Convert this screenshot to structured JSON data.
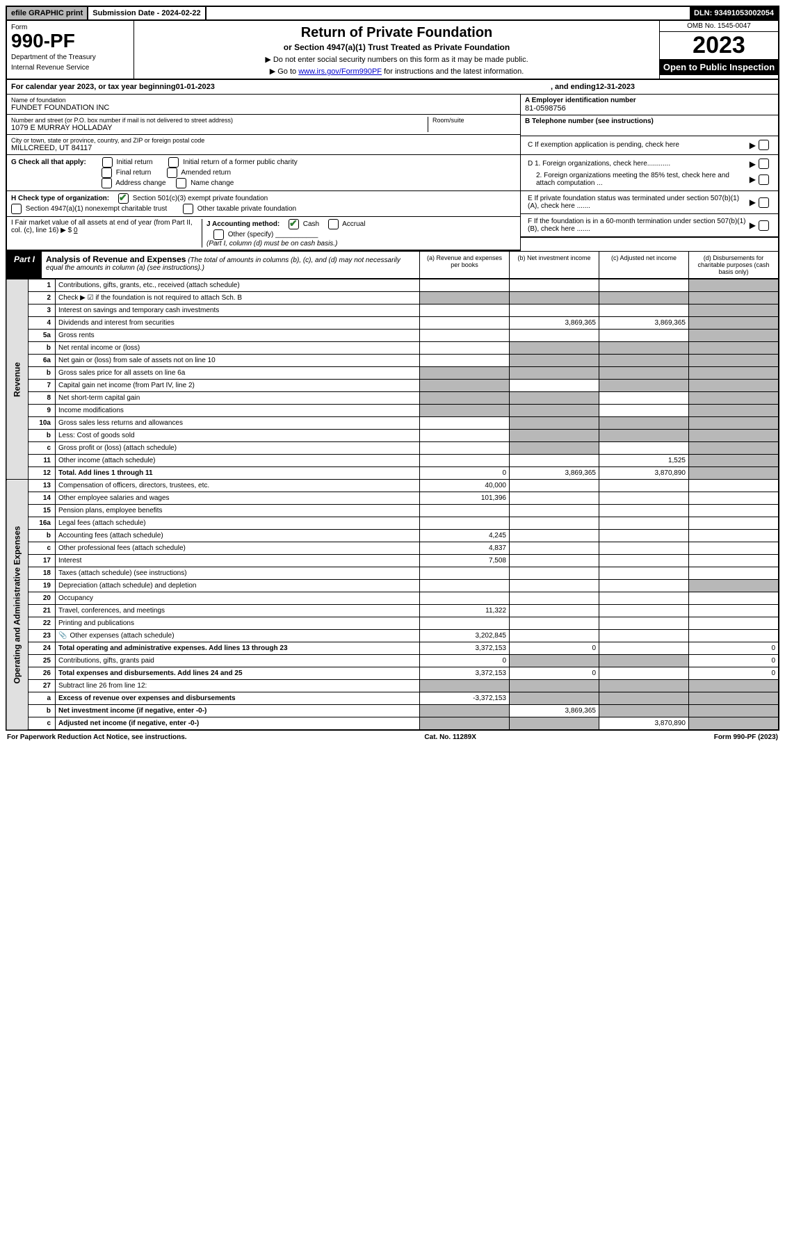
{
  "topbar": {
    "efile": "efile GRAPHIC print",
    "subdate_label": "Submission Date - 2024-02-22",
    "dln": "DLN: 93491053002054"
  },
  "header": {
    "form_label": "Form",
    "form_number": "990-PF",
    "dept": "Department of the Treasury",
    "irs": "Internal Revenue Service",
    "title": "Return of Private Foundation",
    "subtitle": "or Section 4947(a)(1) Trust Treated as Private Foundation",
    "note1": "▶ Do not enter social security numbers on this form as it may be made public.",
    "note2_pre": "▶ Go to ",
    "note2_link": "www.irs.gov/Form990PF",
    "note2_post": " for instructions and the latest information.",
    "omb": "OMB No. 1545-0047",
    "year": "2023",
    "open": "Open to Public Inspection"
  },
  "cal_year": {
    "prefix": "For calendar year 2023, or tax year beginning ",
    "begin": "01-01-2023",
    "mid": " , and ending ",
    "end": "12-31-2023"
  },
  "entity": {
    "name_label": "Name of foundation",
    "name": "FUNDET FOUNDATION INC",
    "addr_label": "Number and street (or P.O. box number if mail is not delivered to street address)",
    "addr": "1079 E MURRAY HOLLADAY",
    "room_label": "Room/suite",
    "city_label": "City or town, state or province, country, and ZIP or foreign postal code",
    "city": "MILLCREED, UT  84117",
    "ein_label": "A Employer identification number",
    "ein": "81-0598756",
    "phone_label": "B Telephone number (see instructions)",
    "c_label": "C If exemption application is pending, check here"
  },
  "g": {
    "label": "G Check all that apply:",
    "opts": [
      "Initial return",
      "Initial return of a former public charity",
      "Final return",
      "Amended return",
      "Address change",
      "Name change"
    ]
  },
  "h": {
    "label": "H Check type of organization:",
    "opt1": "Section 501(c)(3) exempt private foundation",
    "opt2": "Section 4947(a)(1) nonexempt charitable trust",
    "opt3": "Other taxable private foundation"
  },
  "i": {
    "label": "I Fair market value of all assets at end of year (from Part II, col. (c), line 16) ▶ $",
    "val": "0"
  },
  "j": {
    "label": "J Accounting method:",
    "cash": "Cash",
    "accrual": "Accrual",
    "other": "Other (specify)",
    "note": "(Part I, column (d) must be on cash basis.)"
  },
  "d": {
    "d1": "D 1. Foreign organizations, check here............",
    "d2": "2. Foreign organizations meeting the 85% test, check here and attach computation ...",
    "e": "E  If private foundation status was terminated under section 507(b)(1)(A), check here .......",
    "f": "F  If the foundation is in a 60-month termination under section 507(b)(1)(B), check here ......."
  },
  "part1": {
    "label": "Part I",
    "title": "Analysis of Revenue and Expenses",
    "note": " (The total of amounts in columns (b), (c), and (d) may not necessarily equal the amounts in column (a) (see instructions).)",
    "cols": {
      "a": "(a) Revenue and expenses per books",
      "b": "(b) Net investment income",
      "c": "(c) Adjusted net income",
      "d": "(d) Disbursements for charitable purposes (cash basis only)"
    }
  },
  "sides": {
    "revenue": "Revenue",
    "expenses": "Operating and Administrative Expenses"
  },
  "rows": [
    {
      "n": "1",
      "d": "Contributions, gifts, grants, etc., received (attach schedule)",
      "a": "",
      "b": "",
      "c": "",
      "dshade": true
    },
    {
      "n": "2",
      "d": "Check ▶ ☑ if the foundation is not required to attach Sch. B",
      "a": "s",
      "b": "s",
      "c": "s",
      "dshade": true,
      "allshade": true
    },
    {
      "n": "3",
      "d": "Interest on savings and temporary cash investments",
      "a": "",
      "b": "",
      "c": "",
      "dshade": true
    },
    {
      "n": "4",
      "d": "Dividends and interest from securities",
      "a": "",
      "b": "3,869,365",
      "c": "3,869,365",
      "dshade": true
    },
    {
      "n": "5a",
      "d": "Gross rents",
      "a": "",
      "b": "",
      "c": "",
      "dshade": true
    },
    {
      "n": "b",
      "d": "Net rental income or (loss)",
      "a": "",
      "b": "s",
      "c": "s",
      "dshade": true,
      "ashade": false,
      "bcshade": true
    },
    {
      "n": "6a",
      "d": "Net gain or (loss) from sale of assets not on line 10",
      "a": "",
      "b": "s",
      "c": "s",
      "dshade": true,
      "bcshade": true
    },
    {
      "n": "b",
      "d": "Gross sales price for all assets on line 6a",
      "a": "s",
      "b": "s",
      "c": "s",
      "dshade": true,
      "allshade": true
    },
    {
      "n": "7",
      "d": "Capital gain net income (from Part IV, line 2)",
      "a": "s",
      "b": "",
      "c": "s",
      "dshade": true,
      "ashade": true,
      "cshade": true
    },
    {
      "n": "8",
      "d": "Net short-term capital gain",
      "a": "s",
      "b": "s",
      "c": "",
      "dshade": true,
      "ashade": true,
      "bshade": true
    },
    {
      "n": "9",
      "d": "Income modifications",
      "a": "s",
      "b": "s",
      "c": "",
      "dshade": true,
      "ashade": true,
      "bshade": true
    },
    {
      "n": "10a",
      "d": "Gross sales less returns and allowances",
      "a": "",
      "b": "s",
      "c": "s",
      "dshade": true,
      "bcshade": true,
      "ashade": false
    },
    {
      "n": "b",
      "d": "Less: Cost of goods sold",
      "a": "",
      "b": "s",
      "c": "s",
      "dshade": true,
      "bcshade": true
    },
    {
      "n": "c",
      "d": "Gross profit or (loss) (attach schedule)",
      "a": "",
      "b": "s",
      "c": "",
      "dshade": true,
      "bshade": true
    },
    {
      "n": "11",
      "d": "Other income (attach schedule)",
      "a": "",
      "b": "",
      "c": "1,525",
      "dshade": true
    },
    {
      "n": "12",
      "d": "Total. Add lines 1 through 11",
      "a": "0",
      "b": "3,869,365",
      "c": "3,870,890",
      "dshade": true,
      "bold": true
    }
  ],
  "exp_rows": [
    {
      "n": "13",
      "d": "Compensation of officers, directors, trustees, etc.",
      "a": "40,000",
      "b": "",
      "c": "",
      "de": ""
    },
    {
      "n": "14",
      "d": "Other employee salaries and wages",
      "a": "101,396",
      "b": "",
      "c": "",
      "de": ""
    },
    {
      "n": "15",
      "d": "Pension plans, employee benefits",
      "a": "",
      "b": "",
      "c": "",
      "de": ""
    },
    {
      "n": "16a",
      "d": "Legal fees (attach schedule)",
      "a": "",
      "b": "",
      "c": "",
      "de": ""
    },
    {
      "n": "b",
      "d": "Accounting fees (attach schedule)",
      "a": "4,245",
      "b": "",
      "c": "",
      "de": ""
    },
    {
      "n": "c",
      "d": "Other professional fees (attach schedule)",
      "a": "4,837",
      "b": "",
      "c": "",
      "de": ""
    },
    {
      "n": "17",
      "d": "Interest",
      "a": "7,508",
      "b": "",
      "c": "",
      "de": ""
    },
    {
      "n": "18",
      "d": "Taxes (attach schedule) (see instructions)",
      "a": "",
      "b": "",
      "c": "",
      "de": ""
    },
    {
      "n": "19",
      "d": "Depreciation (attach schedule) and depletion",
      "a": "",
      "b": "",
      "c": "",
      "de": "s",
      "dshade": true
    },
    {
      "n": "20",
      "d": "Occupancy",
      "a": "",
      "b": "",
      "c": "",
      "de": ""
    },
    {
      "n": "21",
      "d": "Travel, conferences, and meetings",
      "a": "11,322",
      "b": "",
      "c": "",
      "de": ""
    },
    {
      "n": "22",
      "d": "Printing and publications",
      "a": "",
      "b": "",
      "c": "",
      "de": ""
    },
    {
      "n": "23",
      "d": "Other expenses (attach schedule)",
      "a": "3,202,845",
      "b": "",
      "c": "",
      "de": "",
      "icon": true
    },
    {
      "n": "24",
      "d": "Total operating and administrative expenses. Add lines 13 through 23",
      "a": "3,372,153",
      "b": "0",
      "c": "",
      "de": "0",
      "bold": true
    },
    {
      "n": "25",
      "d": "Contributions, gifts, grants paid",
      "a": "0",
      "b": "s",
      "c": "s",
      "de": "0",
      "bshade": true,
      "cshade": true
    },
    {
      "n": "26",
      "d": "Total expenses and disbursements. Add lines 24 and 25",
      "a": "3,372,153",
      "b": "0",
      "c": "",
      "de": "0",
      "bold": true
    },
    {
      "n": "27",
      "d": "Subtract line 26 from line 12:",
      "a": "s",
      "b": "s",
      "c": "s",
      "de": "s",
      "allshade": true
    },
    {
      "n": "a",
      "d": "Excess of revenue over expenses and disbursements",
      "a": "-3,372,153",
      "b": "s",
      "c": "s",
      "de": "s",
      "bold": true,
      "bshade": true,
      "cshade": true,
      "dshade": true
    },
    {
      "n": "b",
      "d": "Net investment income (if negative, enter -0-)",
      "a": "s",
      "b": "3,869,365",
      "c": "s",
      "de": "s",
      "bold": true,
      "ashade": true,
      "cshade": true,
      "dshade": true
    },
    {
      "n": "c",
      "d": "Adjusted net income (if negative, enter -0-)",
      "a": "s",
      "b": "s",
      "c": "3,870,890",
      "de": "s",
      "bold": true,
      "ashade": true,
      "bshade": true,
      "dshade": true
    }
  ],
  "footer": {
    "left": "For Paperwork Reduction Act Notice, see instructions.",
    "mid": "Cat. No. 11289X",
    "right": "Form 990-PF (2023)"
  }
}
